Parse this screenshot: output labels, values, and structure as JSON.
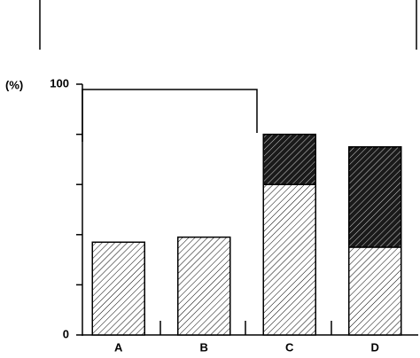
{
  "chart_data": {
    "type": "stacked_bar",
    "y_label": "(%)",
    "categories": [
      "A",
      "B",
      "C",
      "D"
    ],
    "series": [
      {
        "color": "#ffffff",
        "values": [
          37,
          39,
          60,
          35
        ]
      },
      {
        "color": "#1a1a1a",
        "values": [
          null,
          null,
          20,
          40
        ]
      }
    ],
    "ylim": [
      0,
      100
    ],
    "yticks": [
      0,
      100
    ],
    "minor_yticks": [
      20,
      40,
      60,
      80
    ]
  }
}
